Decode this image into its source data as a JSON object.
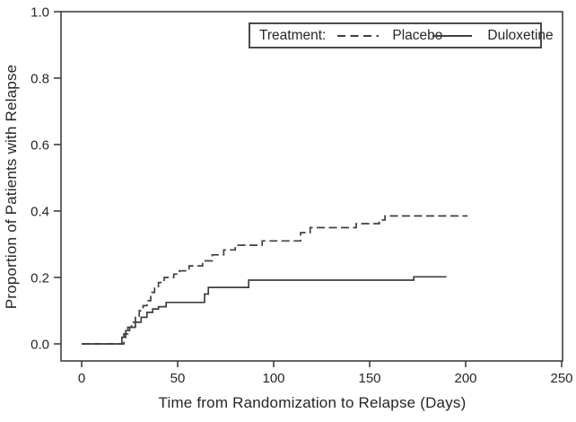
{
  "chart_data": {
    "type": "line",
    "subtype": "kaplan-meier-step",
    "title": "",
    "xlabel": "Time from Randomization to Relapse (Days)",
    "ylabel": "Proportion of Patients with Relapse",
    "xlim": [
      0,
      250
    ],
    "ylim": [
      0.0,
      1.0
    ],
    "xticks": [
      0,
      50,
      100,
      150,
      200,
      250
    ],
    "yticks": [
      0.0,
      0.2,
      0.4,
      0.6,
      0.8,
      1.0
    ],
    "ytick_labels": [
      "0.0",
      "0.2",
      "0.4",
      "0.6",
      "0.8",
      "1.0"
    ],
    "grid": false,
    "frame": true,
    "line_color": "#3f3f3f",
    "text_color": "#262626",
    "legend": {
      "title": "Treatment:",
      "position": "top-right-inside",
      "entries": [
        {
          "label": "Placebo",
          "line_style": "dashed"
        },
        {
          "label": "Duloxetine",
          "line_style": "solid"
        }
      ]
    },
    "series": [
      {
        "name": "Placebo",
        "line_style": "dashed",
        "points": [
          [
            0,
            0
          ],
          [
            21,
            0
          ],
          [
            22,
            0.03
          ],
          [
            24,
            0.05
          ],
          [
            26,
            0.065
          ],
          [
            28,
            0.08
          ],
          [
            30,
            0.1
          ],
          [
            32,
            0.115
          ],
          [
            34,
            0.13
          ],
          [
            36,
            0.155
          ],
          [
            38,
            0.17
          ],
          [
            40,
            0.185
          ],
          [
            43,
            0.2
          ],
          [
            48,
            0.21
          ],
          [
            51,
            0.22
          ],
          [
            56,
            0.235
          ],
          [
            63,
            0.25
          ],
          [
            68,
            0.268
          ],
          [
            74,
            0.283
          ],
          [
            80,
            0.297
          ],
          [
            94,
            0.31
          ],
          [
            114,
            0.335
          ],
          [
            119,
            0.35
          ],
          [
            143,
            0.362
          ],
          [
            155,
            0.373
          ],
          [
            158,
            0.385
          ],
          [
            201,
            0.385
          ]
        ]
      },
      {
        "name": "Duloxetine",
        "line_style": "solid",
        "points": [
          [
            0,
            0
          ],
          [
            20,
            0
          ],
          [
            21,
            0.02
          ],
          [
            23,
            0.04
          ],
          [
            25,
            0.05
          ],
          [
            28,
            0.065
          ],
          [
            31,
            0.08
          ],
          [
            34,
            0.095
          ],
          [
            37,
            0.105
          ],
          [
            40,
            0.112
          ],
          [
            44,
            0.125
          ],
          [
            64,
            0.15
          ],
          [
            66,
            0.17
          ],
          [
            87,
            0.192
          ],
          [
            173,
            0.202
          ],
          [
            190,
            0.202
          ]
        ]
      }
    ]
  }
}
